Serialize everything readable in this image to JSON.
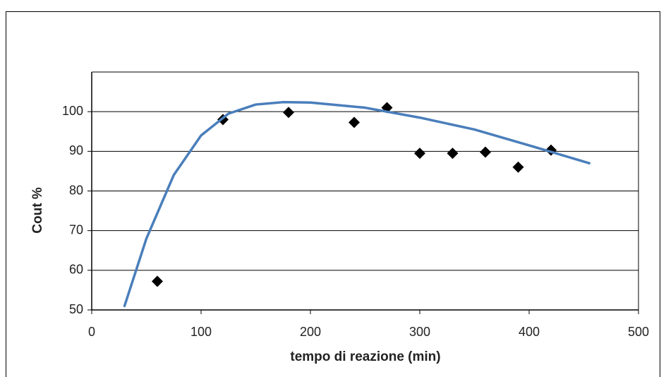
{
  "chart_data": {
    "type": "scatter",
    "x_label": "tempo di reazione (min)",
    "y_label": "Cout %",
    "xlim": [
      0,
      500
    ],
    "xticks": [
      0,
      100,
      200,
      300,
      400,
      500
    ],
    "ylim": [
      50,
      110
    ],
    "yticks": [
      50,
      60,
      70,
      80,
      90,
      100
    ],
    "grid": true,
    "series": [
      {
        "mode": "markers",
        "marker": "diamond",
        "color": "#000000",
        "x": [
          60,
          120,
          180,
          240,
          270,
          300,
          330,
          360,
          390,
          420
        ],
        "values": [
          57.2,
          98,
          99.8,
          97.3,
          101,
          89.5,
          89.5,
          89.8,
          86,
          90.3
        ]
      },
      {
        "mode": "line",
        "color": "#4a7ebb",
        "x": [
          30,
          50,
          75,
          100,
          125,
          150,
          175,
          200,
          250,
          300,
          350,
          400,
          455
        ],
        "values": [
          51,
          68,
          84,
          94,
          99.5,
          101.8,
          102.4,
          102.3,
          101,
          98.5,
          95.5,
          91.5,
          87
        ]
      }
    ]
  }
}
